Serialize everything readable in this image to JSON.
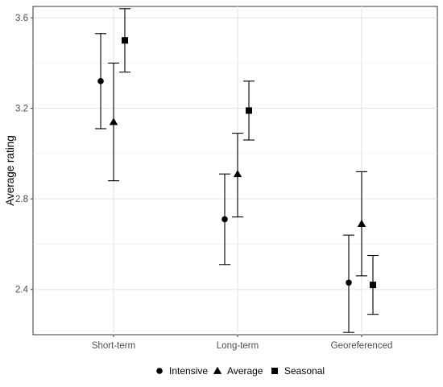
{
  "chart_data": {
    "type": "scatter",
    "subtype": "point-with-errorbars",
    "title": "",
    "xlabel": "",
    "ylabel": "Average rating",
    "ylim": [
      2.2,
      3.65
    ],
    "yticks": [
      2.4,
      2.8,
      3.2,
      3.6
    ],
    "ytick_labels": [
      "2.4",
      "2.8",
      "3.2",
      "3.6"
    ],
    "categories": [
      "Short-term",
      "Long-term",
      "Georeferenced"
    ],
    "grid": true,
    "legend_position": "bottom",
    "series": [
      {
        "name": "Intensive",
        "marker": "circle",
        "values": [
          3.32,
          2.71,
          2.43
        ],
        "lower": [
          3.11,
          2.51,
          2.21
        ],
        "upper": [
          3.53,
          2.91,
          2.64
        ]
      },
      {
        "name": "Average",
        "marker": "triangle",
        "values": [
          3.14,
          2.91,
          2.69
        ],
        "lower": [
          2.88,
          2.72,
          2.46
        ],
        "upper": [
          3.4,
          3.09,
          2.92
        ]
      },
      {
        "name": "Seasonal",
        "marker": "square",
        "values": [
          3.5,
          3.19,
          2.42
        ],
        "lower": [
          3.36,
          3.06,
          2.29
        ],
        "upper": [
          3.64,
          3.32,
          2.55
        ]
      }
    ]
  }
}
